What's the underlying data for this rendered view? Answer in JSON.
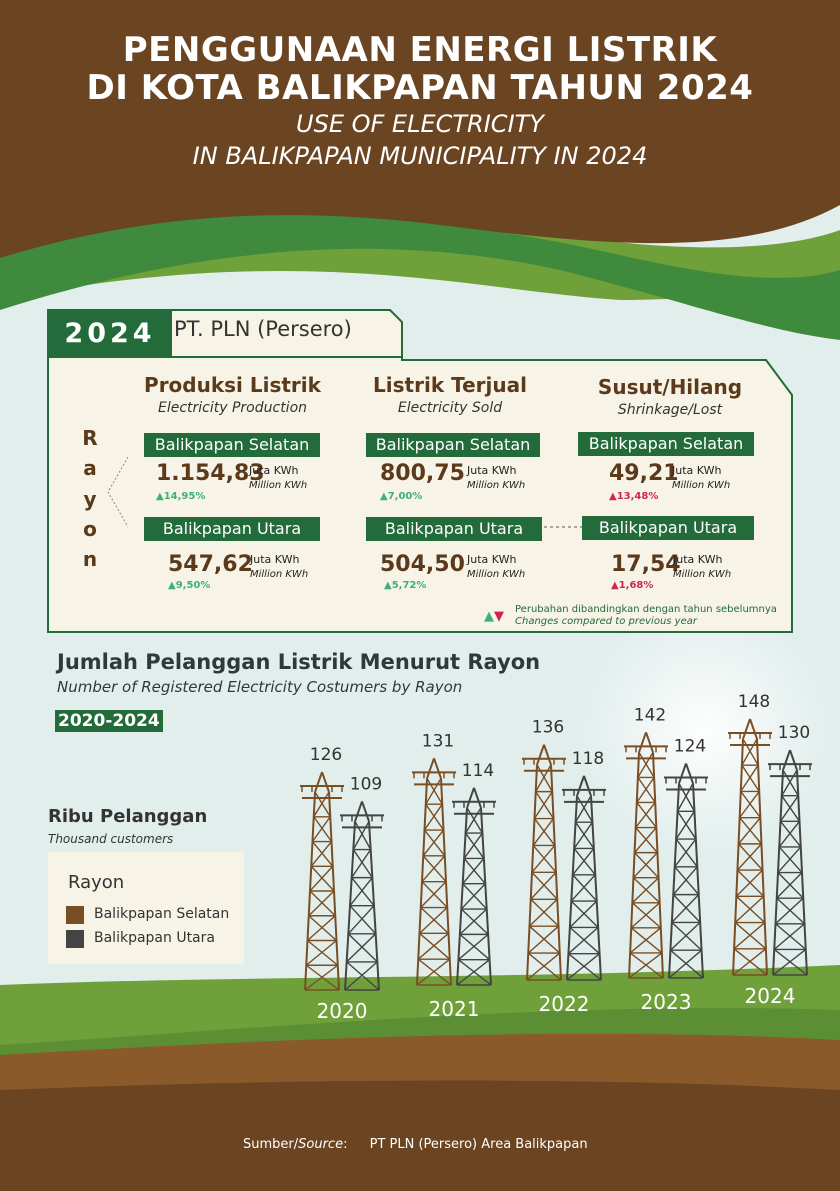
{
  "header": {
    "title_line1": "PENGGUNAAN ENERGI LISTRIK",
    "title_line2": "DI KOTA BALIKPAPAN TAHUN 2024",
    "subtitle_line1": "USE OF ELECTRICITY",
    "subtitle_line2": "IN BALIKPAPAN MUNICIPALITY IN 2024"
  },
  "summary": {
    "year": "2024",
    "company": "PT. PLN (Persero)",
    "rayon_letters": [
      "R",
      "a",
      "y",
      "o",
      "n"
    ],
    "columns": [
      {
        "title": "Produksi Listrik",
        "subtitle": "Electricity Production",
        "rows": [
          {
            "area": "Balikpapan Selatan",
            "value": "1.154,83",
            "unit": "Juta KWh",
            "unit_en": "Million KWh",
            "change": "14,95%",
            "dir": "up"
          },
          {
            "area": "Balikpapan Utara",
            "value": "547,62",
            "unit": "Juta KWh",
            "unit_en": "Million KWh",
            "change": "9,50%",
            "dir": "up"
          }
        ]
      },
      {
        "title": "Listrik Terjual",
        "subtitle": "Electricity Sold",
        "rows": [
          {
            "area": "Balikpapan Selatan",
            "value": "800,75",
            "unit": "Juta KWh",
            "unit_en": "Million KWh",
            "change": "7,00%",
            "dir": "up"
          },
          {
            "area": "Balikpapan Utara",
            "value": "504,50",
            "unit": "Juta KWh",
            "unit_en": "Million KWh",
            "change": "5,72%",
            "dir": "up"
          }
        ]
      },
      {
        "title": "Susut/Hilang",
        "subtitle": "Shrinkage/Lost",
        "rows": [
          {
            "area": "Balikpapan Selatan",
            "value": "49,21",
            "unit": "Juta KWh",
            "unit_en": "Million KWh",
            "change": "13,48%",
            "dir": "down"
          },
          {
            "area": "Balikpapan Utara",
            "value": "17,54",
            "unit": "Juta KWh",
            "unit_en": "Million KWh",
            "change": "1,68%",
            "dir": "down"
          }
        ]
      }
    ],
    "note_id": "Perubahan dibandingkan dengan tahun sebelumnya",
    "note_en": "Changes compared to previous year"
  },
  "customers": {
    "title": "Jumlah Pelanggan Listrik Menurut Rayon",
    "subtitle": "Number of Registered Electricity Costumers by Rayon",
    "period": "2020-2024",
    "unit": "Ribu Pelanggan",
    "unit_en": "Thousand customers",
    "legend_title": "Rayon"
  },
  "chart_data": {
    "type": "bar",
    "categories": [
      "2020",
      "2021",
      "2022",
      "2023",
      "2024"
    ],
    "series": [
      {
        "name": "Balikpapan Selatan",
        "values": [
          126,
          131,
          136,
          142,
          148
        ],
        "color": "#7a4e24"
      },
      {
        "name": "Balikpapan Utara",
        "values": [
          109,
          114,
          118,
          124,
          130
        ],
        "color": "#444444"
      }
    ],
    "ylabel": "Ribu Pelanggan"
  },
  "source": {
    "label": "Sumber/",
    "label_en": "Source",
    "colon": ":",
    "text": "PT PLN (Persero) Area Balikpapan"
  },
  "colors": {
    "brown_dark": "#6b4422",
    "green_dark": "#236b3a",
    "green_light": "#6fa03a",
    "sel": "#7a4e24",
    "uta": "#444444"
  }
}
